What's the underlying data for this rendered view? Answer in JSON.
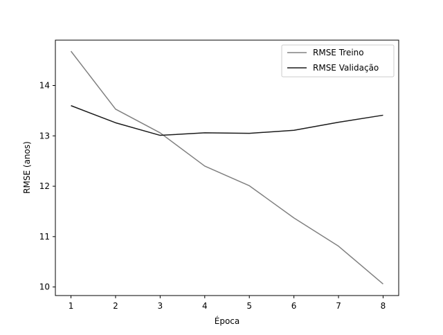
{
  "chart_data": {
    "type": "line",
    "title": "",
    "xlabel": "Época",
    "ylabel": "RMSE (anos)",
    "x": [
      1,
      2,
      3,
      4,
      5,
      6,
      7,
      8
    ],
    "xticks": [
      "1",
      "2",
      "3",
      "4",
      "5",
      "6",
      "7",
      "8"
    ],
    "yticks": [
      "10",
      "11",
      "12",
      "13",
      "14"
    ],
    "xlim": [
      0.65,
      8.35
    ],
    "ylim": [
      9.83,
      14.9
    ],
    "grid": false,
    "legend_position": "top-right",
    "series": [
      {
        "name": "RMSE Treino",
        "color": "#808080",
        "values": [
          14.68,
          13.53,
          13.06,
          12.4,
          12.01,
          11.37,
          10.81,
          10.06
        ]
      },
      {
        "name": "RMSE Validação",
        "color": "#1a1a1a",
        "values": [
          13.6,
          13.26,
          13.01,
          13.06,
          13.05,
          13.11,
          13.27,
          13.41
        ]
      }
    ]
  }
}
